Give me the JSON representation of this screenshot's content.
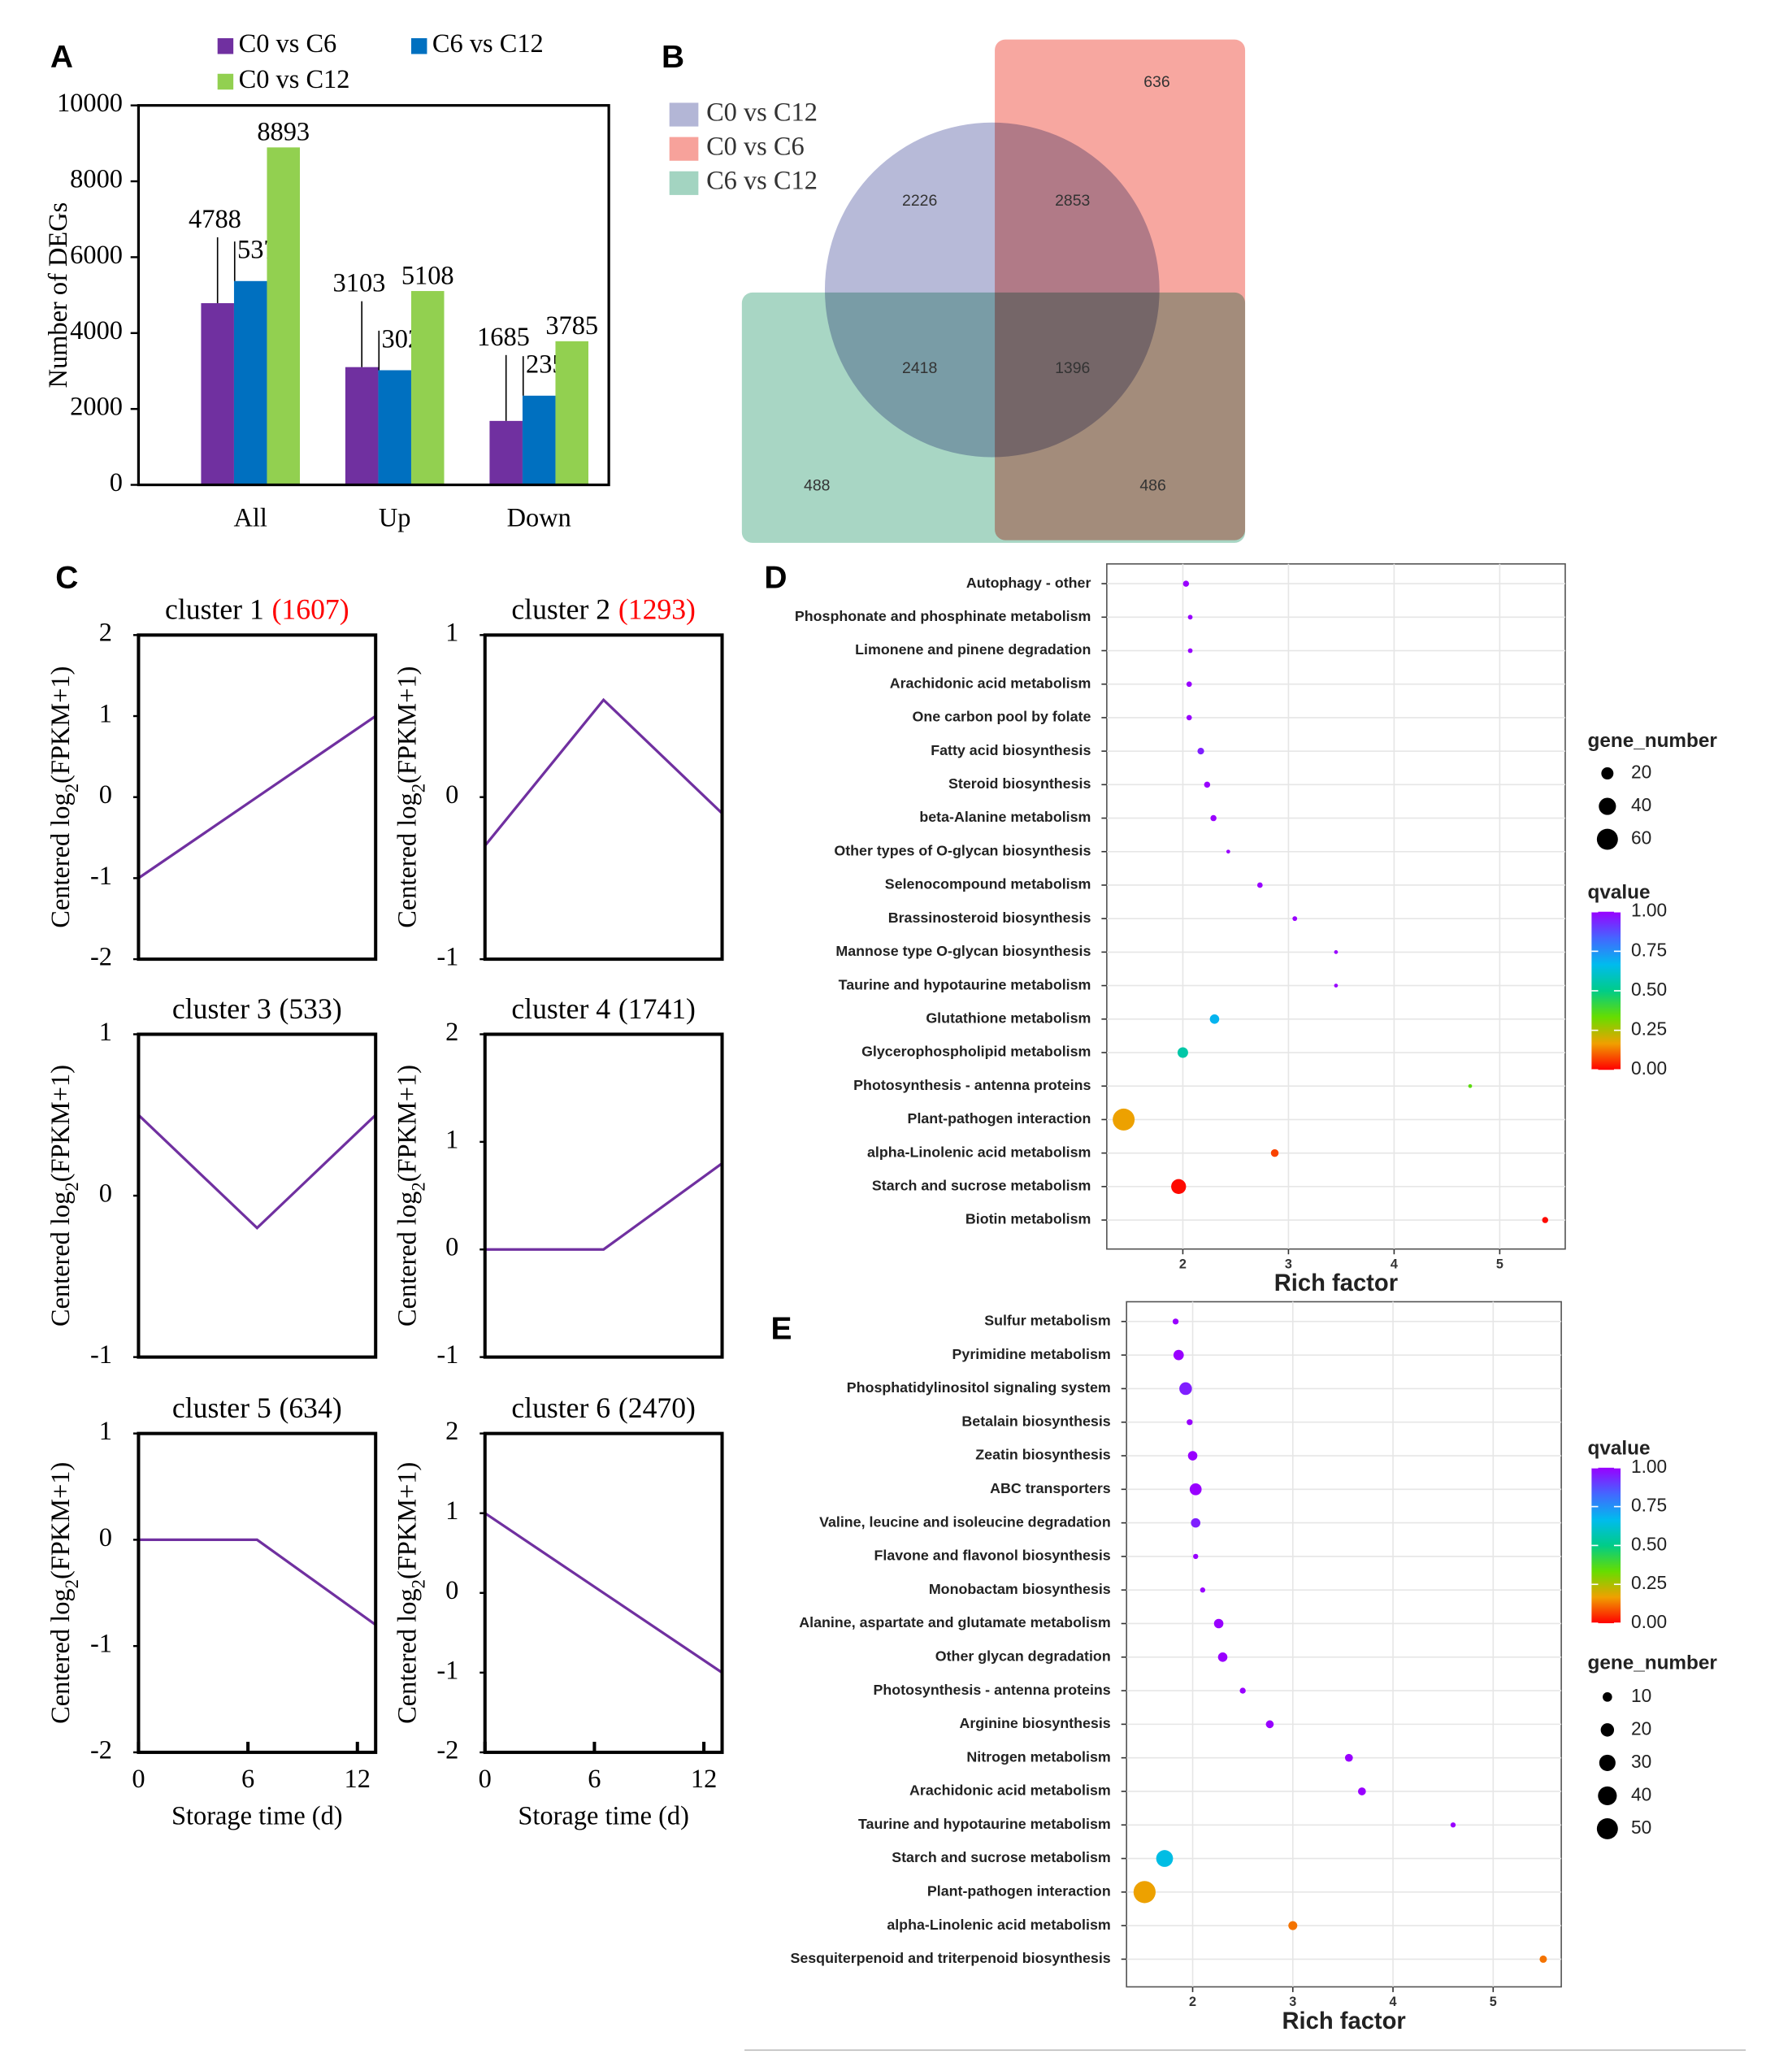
{
  "chart_data": [
    {
      "type": "bar",
      "panel_label": "A",
      "ylabel": "Number of DEGs",
      "categories": [
        "All",
        "Up",
        "Down"
      ],
      "series": [
        {
          "name": "C0 vs C6",
          "color": "#7030a0",
          "values": [
            4788,
            3103,
            1685
          ]
        },
        {
          "name": "C6 vs C12",
          "color": "#0070c0",
          "values": [
            5371,
            3021,
            2350
          ]
        },
        {
          "name": "C0 vs C12",
          "color": "#92d050",
          "values": [
            8893,
            5108,
            3785
          ]
        }
      ],
      "ylim": [
        0,
        10000
      ],
      "yticks": [
        0,
        2000,
        4000,
        6000,
        8000,
        10000
      ]
    },
    {
      "type": "venn",
      "panel_label": "B",
      "sets": [
        {
          "name": "C0 vs C12",
          "color": "#b3b6d6"
        },
        {
          "name": "C0 vs C6",
          "color": "#f7a29b"
        },
        {
          "name": "C6 vs C12",
          "color": "#a3d4c1"
        }
      ],
      "values": [
        636,
        2226,
        2853,
        2418,
        1396,
        488,
        486
      ]
    },
    {
      "type": "line",
      "panel_label": "C",
      "title": "cluster 1",
      "count_label": "(1607)",
      "count_color": "#ff0000",
      "ylabel": [
        "Centered log",
        "2",
        "(FPKM+1)"
      ],
      "color": "#7030a0",
      "x": [
        0,
        6.5,
        13
      ],
      "values": [
        -1,
        0,
        1
      ],
      "xlim": [
        0,
        13
      ],
      "ylim": [
        -2,
        2
      ],
      "yticks": [
        -2,
        -1,
        0,
        1,
        2
      ]
    },
    {
      "type": "line",
      "title": "cluster 2",
      "count_label": "(1293)",
      "count_color": "#ff0000",
      "ylabel": [
        "Centered log",
        "2",
        "(FPKM+1)"
      ],
      "color": "#7030a0",
      "x": [
        0,
        6.5,
        13
      ],
      "values": [
        -0.3,
        0.6,
        -0.1
      ],
      "xlim": [
        0,
        13
      ],
      "ylim": [
        -1,
        1
      ],
      "yticks": [
        -1,
        0,
        1
      ]
    },
    {
      "type": "line",
      "title": "cluster 3",
      "count_label": "(533)",
      "count_color": "#000000",
      "ylabel": [
        "Centered log",
        "2",
        "(FPKM+1)"
      ],
      "color": "#7030a0",
      "x": [
        0,
        6.5,
        13
      ],
      "values": [
        0.5,
        -0.2,
        0.5
      ],
      "xlim": [
        0,
        13
      ],
      "ylim": [
        -1,
        1
      ],
      "yticks": [
        -1,
        0,
        1
      ]
    },
    {
      "type": "line",
      "title": "cluster 4",
      "count_label": "(1741)",
      "count_color": "#000000",
      "ylabel": [
        "Centered log",
        "2",
        "(FPKM+1)"
      ],
      "color": "#7030a0",
      "x": [
        0,
        6.5,
        13
      ],
      "values": [
        0,
        0,
        0.8
      ],
      "xlim": [
        0,
        13
      ],
      "ylim": [
        -1,
        2
      ],
      "yticks": [
        -1,
        0,
        1,
        2
      ]
    },
    {
      "type": "line",
      "title": "cluster 5",
      "count_label": "(634)",
      "count_color": "#000000",
      "ylabel": [
        "Centered log",
        "2",
        "(FPKM+1)"
      ],
      "xlabel": "Storage time (d)",
      "color": "#7030a0",
      "x": [
        0,
        6.5,
        13
      ],
      "values": [
        0,
        0,
        -0.8
      ],
      "xlim": [
        0,
        13
      ],
      "xticks": [
        0,
        6,
        12
      ],
      "ylim": [
        -2,
        1
      ],
      "yticks": [
        -2,
        -1,
        0,
        1
      ]
    },
    {
      "type": "line",
      "title": "cluster 6",
      "count_label": "(2470)",
      "count_color": "#000000",
      "ylabel": [
        "Centered log",
        "2",
        "(FPKM+1)"
      ],
      "xlabel": "Storage time (d)",
      "color": "#7030a0",
      "x": [
        0,
        6.5,
        13
      ],
      "values": [
        1,
        0,
        -1
      ],
      "xlim": [
        0,
        13
      ],
      "xticks": [
        0,
        6,
        12
      ],
      "ylim": [
        -2,
        2
      ],
      "yticks": [
        -2,
        -1,
        0,
        1,
        2
      ]
    },
    {
      "type": "dotplot",
      "panel_label": "D",
      "xlabel": "Rich factor",
      "grid": true,
      "categories": [
        "Autophagy - other",
        "Phosphonate and phosphinate metabolism",
        "Limonene and pinene degradation",
        "Arachidonic acid metabolism",
        "One carbon pool by folate",
        "Fatty acid biosynthesis",
        "Steroid biosynthesis",
        "beta-Alanine metabolism",
        "Other types of O-glycan biosynthesis",
        "Selenocompound metabolism",
        "Brassinosteroid biosynthesis",
        "Mannose type O-glycan biosynthesis",
        "Taurine and hypotaurine metabolism",
        "Glutathione metabolism",
        "Glycerophospholipid metabolism",
        "Photosynthesis - antenna proteins",
        "Plant-pathogen interaction",
        "alpha-Linolenic acid metabolism",
        "Starch and sucrose metabolism",
        "Biotin metabolism"
      ],
      "values": [
        2.03,
        2.07,
        2.07,
        2.06,
        2.06,
        2.17,
        2.23,
        2.29,
        2.43,
        2.73,
        3.06,
        3.45,
        3.45,
        2.3,
        2.0,
        4.72,
        1.44,
        2.87,
        1.96,
        5.43
      ],
      "gene_number": [
        5,
        3,
        3,
        4,
        4,
        6,
        5,
        5,
        2,
        4,
        3,
        2,
        2,
        12,
        15,
        2,
        65,
        8,
        30,
        5
      ],
      "qvalue": [
        1,
        1,
        1,
        1,
        1,
        0.95,
        1,
        1,
        1,
        1,
        1,
        1,
        1,
        0.68,
        0.55,
        0.35,
        0.17,
        0.07,
        0.01,
        0.01
      ],
      "xlim": [
        1.28,
        5.62
      ],
      "xticks": [
        2,
        3,
        4,
        5
      ],
      "size_legend_title": "gene_number",
      "size_legend": [
        20,
        40,
        60
      ],
      "color_legend_title": "qvalue",
      "clim": [
        0,
        1
      ],
      "color_ticks": [
        {
          "value": 1,
          "label": "1.00"
        },
        {
          "value": 0.75,
          "label": "0.75"
        },
        {
          "value": 0.5,
          "label": "0.50"
        },
        {
          "value": 0.25,
          "label": "0.25"
        },
        {
          "value": 0,
          "label": "0.00"
        }
      ],
      "colormap": [
        "#ff0000",
        "#f0a000",
        "#66dd00",
        "#00cc88",
        "#00bbee",
        "#4466ff",
        "#9900ff"
      ],
      "legend_order": [
        "size",
        "color"
      ]
    },
    {
      "type": "dotplot",
      "panel_label": "E",
      "xlabel": "Rich factor",
      "grid": true,
      "categories": [
        "Sulfur metabolism",
        "Pyrimidine metabolism",
        "Phosphatidylinositol signaling system",
        "Betalain biosynthesis",
        "Zeatin biosynthesis",
        "ABC transporters",
        "Valine, leucine and isoleucine degradation",
        "Flavone and flavonol biosynthesis",
        "Monobactam biosynthesis",
        "Alanine, aspartate and glutamate metabolism",
        "Other glycan degradation",
        "Photosynthesis - antenna proteins",
        "Arginine biosynthesis",
        "Nitrogen metabolism",
        "Arachidonic acid metabolism",
        "Taurine and hypotaurine metabolism",
        "Starch and sucrose metabolism",
        "Plant-pathogen interaction",
        "alpha-Linolenic acid metabolism",
        "Sesquiterpenoid and triterpenoid biosynthesis"
      ],
      "values": [
        1.83,
        1.86,
        1.93,
        1.97,
        2.0,
        2.03,
        2.03,
        2.03,
        2.1,
        2.26,
        2.3,
        2.5,
        2.77,
        3.56,
        3.69,
        4.6,
        1.72,
        1.52,
        3.0,
        5.5
      ],
      "gene_number": [
        4,
        12,
        18,
        4,
        10,
        16,
        10,
        3,
        3,
        10,
        10,
        4,
        7,
        7,
        7,
        3,
        32,
        55,
        9,
        6
      ],
      "qvalue": [
        1,
        1,
        0.95,
        1,
        1,
        1,
        0.95,
        1,
        1,
        1,
        1,
        1,
        1,
        1,
        1,
        1,
        0.65,
        0.17,
        0.12,
        0.12
      ],
      "xlim": [
        1.34,
        5.68
      ],
      "xticks": [
        2,
        3,
        4,
        5
      ],
      "size_legend_title": "gene_number",
      "size_legend": [
        10,
        20,
        30,
        40,
        50
      ],
      "color_legend_title": "qvalue",
      "clim": [
        0,
        1
      ],
      "color_ticks": [
        {
          "value": 1,
          "label": "1.00"
        },
        {
          "value": 0.75,
          "label": "0.75"
        },
        {
          "value": 0.5,
          "label": "0.50"
        },
        {
          "value": 0.25,
          "label": "0.25"
        },
        {
          "value": 0,
          "label": "0.00"
        }
      ],
      "colormap": [
        "#ff0000",
        "#f0a000",
        "#66dd00",
        "#00cc88",
        "#00bbee",
        "#4466ff",
        "#9900ff"
      ],
      "legend_order": [
        "color",
        "size"
      ]
    }
  ]
}
